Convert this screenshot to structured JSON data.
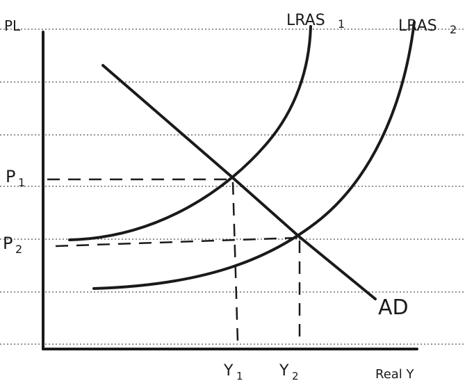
{
  "diagram": {
    "y_axis_label": "PL",
    "x_axis_label": "Real Y",
    "curves": {
      "lras1": "LRAS",
      "lras1_sub": "1",
      "lras2": "LRAS",
      "lras2_sub": "2",
      "ad": "AD"
    },
    "price_levels": [
      {
        "label": "P",
        "sub": "1"
      },
      {
        "label": "P",
        "sub": "2"
      }
    ],
    "output_levels": [
      {
        "label": "Y",
        "sub": "1"
      },
      {
        "label": "Y",
        "sub": "2"
      }
    ]
  },
  "colors": {
    "ink": "#1a1a1a",
    "ruled_lines": "#6e6e6e",
    "paper": "#ffffff"
  }
}
